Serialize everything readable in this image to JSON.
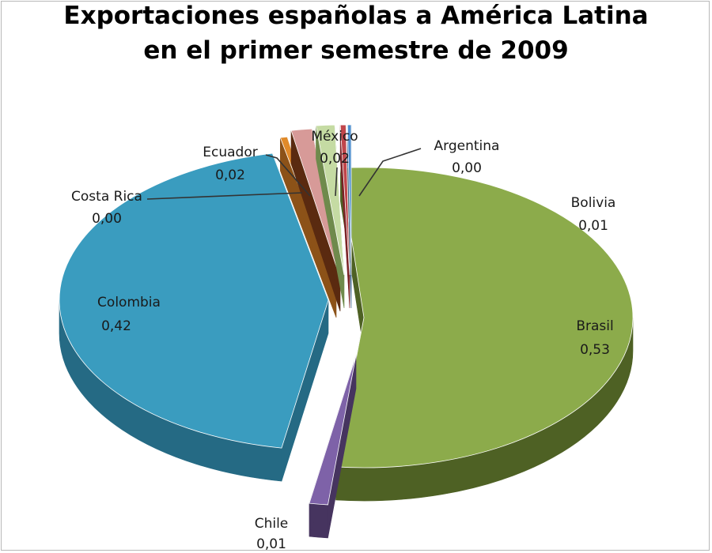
{
  "chart_data": {
    "type": "pie",
    "title_lines": [
      "Exportaciones  españolas  a América Latina",
      "en el primer semestre de 2009"
    ],
    "slices": [
      {
        "label": "Brasil",
        "value": 0.53,
        "display": "0,53",
        "color": "#8CAB4B",
        "side": "#4E6124"
      },
      {
        "label": "Chile",
        "value": 0.01,
        "display": "0,01",
        "color": "#7E62A8",
        "side": "#46345F"
      },
      {
        "label": "Colombia",
        "value": 0.42,
        "display": "0,42",
        "color": "#3A9CBF",
        "side": "#256A84"
      },
      {
        "label": "Costa Rica",
        "value": 0.0,
        "display": "0,00",
        "color": "#E08A2A",
        "side": "#8C5218"
      },
      {
        "label": "Ecuador",
        "value": 0.02,
        "display": "0,02",
        "color": "#D79A98",
        "side": "#5A2A10"
      },
      {
        "label": "México",
        "value": 0.02,
        "display": "0,02",
        "color": "#C5DBA3",
        "side": "#6F8A4C"
      },
      {
        "label": "Argentina",
        "value": 0.0,
        "display": "0,00",
        "color": "#C0464B",
        "side": "#7A2226"
      },
      {
        "label": "Bolivia",
        "value": 0.01,
        "display": "0,01",
        "color": "#4E8FCF",
        "side": "#2E5A86"
      }
    ]
  }
}
